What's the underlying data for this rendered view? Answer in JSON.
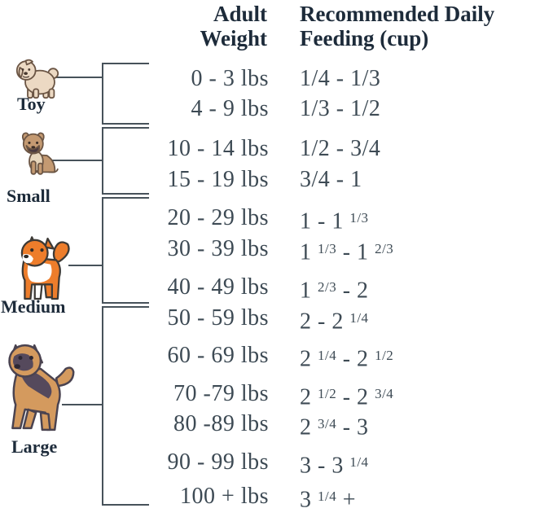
{
  "header": {
    "weight_line1": "Adult",
    "weight_line2": "Weight",
    "feeding_line1": "Recommended Daily",
    "feeding_line2": "Feeding (cup)"
  },
  "groups": [
    {
      "label": "Toy",
      "dog_icon": "shih-tzu-dog",
      "rows": [
        {
          "weight": "0 - 3 lbs",
          "feeding": "1/4 - 1/3"
        },
        {
          "weight": "4 - 9 lbs",
          "feeding": "1/3 - 1/2"
        }
      ]
    },
    {
      "label": "Small",
      "dog_icon": "french-bulldog-dog",
      "rows": [
        {
          "weight": "10 - 14 lbs",
          "feeding": "1/2 - 3/4"
        },
        {
          "weight": "15 - 19 lbs",
          "feeding": "3/4 - 1"
        }
      ]
    },
    {
      "label": "Medium",
      "dog_icon": "shiba-inu-dog",
      "rows": [
        {
          "weight": "20 - 29 lbs",
          "feeding": "1 - 1 {1/3}"
        },
        {
          "weight": "30 - 39 lbs",
          "feeding": "1 {1/3} - 1 {2/3}"
        },
        {
          "weight": "40 - 49 lbs",
          "feeding": "1 {2/3} - 2"
        }
      ]
    },
    {
      "label": "Large",
      "dog_icon": "german-shepherd-dog",
      "rows": [
        {
          "weight": "50 - 59 lbs",
          "feeding": "2 - 2 {1/4}"
        },
        {
          "weight": "60 - 69 lbs",
          "feeding": "2 {1/4} - 2 {1/2}"
        },
        {
          "weight": "70 -79 lbs",
          "feeding": "2 {1/2} - 2 {3/4}"
        },
        {
          "weight": "80 -89 lbs",
          "feeding": "2 {3/4} - 3"
        },
        {
          "weight": "90 - 99 lbs",
          "feeding": "3 - 3 {1/4}"
        },
        {
          "weight": "100 + lbs",
          "feeding": "3 {1/4} +"
        }
      ]
    }
  ],
  "colors": {
    "header_text": "#1d2b3a",
    "value_text": "#3d4a54",
    "bracket_line": "#47525a",
    "toy_dog_body": "#ecd9c3",
    "small_dog_body": "#c49a72",
    "medium_dog_body": "#ed7d2b",
    "large_dog_body": "#d49a5e",
    "large_dog_saddle": "#55495c"
  },
  "chart_data": {
    "type": "table",
    "title": "Dog feeding chart by adult weight",
    "columns": [
      "Adult Weight",
      "Recommended Daily Feeding (cup)"
    ],
    "rows": [
      [
        "0 - 3 lbs",
        "1/4 - 1/3"
      ],
      [
        "4 - 9 lbs",
        "1/3 - 1/2"
      ],
      [
        "10 - 14 lbs",
        "1/2 - 3/4"
      ],
      [
        "15 - 19 lbs",
        "3/4 - 1"
      ],
      [
        "20 - 29 lbs",
        "1 - 1 1/3"
      ],
      [
        "30 - 39 lbs",
        "1 1/3 - 1 2/3"
      ],
      [
        "40 - 49 lbs",
        "1 2/3 - 2"
      ],
      [
        "50 - 59 lbs",
        "2 - 2 1/4"
      ],
      [
        "60 - 69 lbs",
        "2 1/4 - 2 1/2"
      ],
      [
        "70 -79 lbs",
        "2 1/2 - 2 3/4"
      ],
      [
        "80 -89 lbs",
        "2 3/4 - 3"
      ],
      [
        "90 - 99 lbs",
        "3 - 3 1/4"
      ],
      [
        "100 + lbs",
        "3 1/4 +"
      ]
    ],
    "row_groups": [
      {
        "label": "Toy",
        "row_indexes": [
          0,
          1
        ]
      },
      {
        "label": "Small",
        "row_indexes": [
          2,
          3
        ]
      },
      {
        "label": "Medium",
        "row_indexes": [
          4,
          5,
          6
        ]
      },
      {
        "label": "Large",
        "row_indexes": [
          7,
          8,
          9,
          10,
          11,
          12
        ]
      }
    ]
  }
}
